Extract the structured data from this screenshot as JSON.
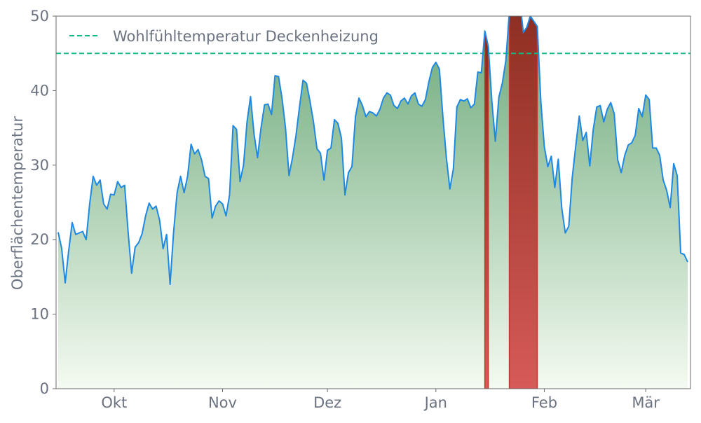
{
  "chart_data": {
    "type": "area",
    "title": "",
    "xlabel": "",
    "ylabel": "Oberflächentemperatur",
    "ylim": [
      0,
      50
    ],
    "yticks": [
      0,
      10,
      20,
      30,
      40,
      50
    ],
    "xticks": [
      {
        "date": "10-01",
        "label": "Okt"
      },
      {
        "date": "11-01",
        "label": "Nov"
      },
      {
        "date": "12-01",
        "label": "Dez"
      },
      {
        "date": "01-01",
        "label": "Jan"
      },
      {
        "date": "02-01",
        "label": "Feb"
      },
      {
        "date": "03-01",
        "label": "Mär"
      }
    ],
    "grid": false,
    "legend_position": "top-left",
    "reference_line": {
      "value": 45,
      "label": "Wohlfühltemperatur Deckenheizung",
      "color": "#10b981",
      "style": "dashed"
    },
    "highlight_ranges": [
      [
        "01-15",
        "01-16"
      ],
      [
        "01-22",
        "01-30"
      ]
    ],
    "colors": {
      "line": "#1e88e5",
      "fill_top": "#5b9f6b",
      "fill_bottom": "#f4faf1",
      "highlight_top": "#862a1c",
      "highlight_bottom": "#d65a58",
      "highlight_edge": "#c0392b"
    },
    "x": [
      "09-15",
      "09-16",
      "09-17",
      "09-18",
      "09-19",
      "09-20",
      "09-21",
      "09-22",
      "09-23",
      "09-24",
      "09-25",
      "09-26",
      "09-27",
      "09-28",
      "09-29",
      "09-30",
      "10-01",
      "10-02",
      "10-03",
      "10-04",
      "10-05",
      "10-06",
      "10-07",
      "10-08",
      "10-09",
      "10-10",
      "10-11",
      "10-12",
      "10-13",
      "10-14",
      "10-15",
      "10-16",
      "10-17",
      "10-18",
      "10-19",
      "10-20",
      "10-21",
      "10-22",
      "10-23",
      "10-24",
      "10-25",
      "10-26",
      "10-27",
      "10-28",
      "10-29",
      "10-30",
      "10-31",
      "11-01",
      "11-02",
      "11-03",
      "11-04",
      "11-05",
      "11-06",
      "11-07",
      "11-08",
      "11-09",
      "11-10",
      "11-11",
      "11-12",
      "11-13",
      "11-14",
      "11-15",
      "11-16",
      "11-17",
      "11-18",
      "11-19",
      "11-20",
      "11-21",
      "11-22",
      "11-23",
      "11-24",
      "11-25",
      "11-26",
      "11-27",
      "11-28",
      "11-29",
      "11-30",
      "12-01",
      "12-02",
      "12-03",
      "12-04",
      "12-05",
      "12-06",
      "12-07",
      "12-08",
      "12-09",
      "12-10",
      "12-11",
      "12-12",
      "12-13",
      "12-14",
      "12-15",
      "12-16",
      "12-17",
      "12-18",
      "12-19",
      "12-20",
      "12-21",
      "12-22",
      "12-23",
      "12-24",
      "12-25",
      "12-26",
      "12-27",
      "12-28",
      "12-29",
      "12-30",
      "12-31",
      "01-01",
      "01-02",
      "01-03",
      "01-04",
      "01-05",
      "01-06",
      "01-07",
      "01-08",
      "01-09",
      "01-10",
      "01-11",
      "01-12",
      "01-13",
      "01-14",
      "01-15",
      "01-16",
      "01-17",
      "01-18",
      "01-19",
      "01-20",
      "01-21",
      "01-22",
      "01-23",
      "01-24",
      "01-25",
      "01-26",
      "01-27",
      "01-28",
      "01-29",
      "01-30",
      "01-31",
      "02-01",
      "02-02",
      "02-03",
      "02-04",
      "02-05",
      "02-06",
      "02-07",
      "02-08",
      "02-09",
      "02-10",
      "02-11",
      "02-12",
      "02-13",
      "02-14",
      "02-15",
      "02-16",
      "02-17",
      "02-18",
      "02-19",
      "02-20",
      "02-21",
      "02-22",
      "02-23",
      "02-24",
      "02-25",
      "02-26",
      "02-27",
      "02-28",
      "02-29",
      "03-01",
      "03-02",
      "03-03",
      "03-04",
      "03-05",
      "03-06",
      "03-07",
      "03-08",
      "03-09",
      "03-10",
      "03-11",
      "03-12",
      "03-13"
    ],
    "values": [
      21.0,
      18.8,
      14.2,
      18.5,
      22.3,
      20.7,
      20.9,
      21.1,
      20.0,
      24.8,
      28.5,
      27.3,
      28.0,
      24.8,
      24.1,
      26.1,
      26.0,
      27.8,
      27.0,
      27.3,
      21.0,
      15.5,
      19.0,
      19.6,
      20.8,
      23.2,
      24.9,
      24.1,
      24.5,
      22.6,
      18.8,
      20.7,
      14.0,
      21.0,
      26.3,
      28.5,
      26.3,
      28.5,
      32.8,
      31.5,
      32.1,
      30.7,
      28.5,
      28.2,
      22.9,
      24.5,
      25.2,
      24.8,
      23.2,
      26.0,
      35.3,
      34.8,
      27.8,
      30.0,
      35.8,
      39.2,
      34.2,
      31.0,
      35.0,
      38.1,
      38.2,
      36.8,
      42.0,
      41.9,
      39.0,
      35.0,
      28.6,
      31.0,
      34.0,
      37.8,
      41.4,
      41.0,
      38.6,
      35.8,
      32.2,
      31.6,
      28.0,
      32.0,
      32.3,
      36.1,
      35.6,
      33.6,
      26.0,
      29.0,
      29.8,
      36.5,
      39.0,
      38.0,
      36.5,
      37.2,
      37.0,
      36.6,
      37.5,
      39.0,
      39.7,
      39.4,
      38.0,
      37.6,
      38.6,
      39.0,
      38.2,
      39.3,
      39.7,
      38.2,
      37.9,
      38.8,
      41.2,
      43.1,
      43.8,
      42.9,
      36.5,
      31.0,
      26.8,
      29.5,
      37.8,
      38.8,
      38.6,
      38.9,
      37.7,
      38.2,
      42.5,
      42.4,
      48.0,
      45.9,
      38.6,
      33.2,
      39.1,
      41.0,
      44.0,
      50.5,
      54.0,
      56.0,
      52.0,
      47.8,
      48.5,
      50.0,
      49.3,
      48.6,
      38.6,
      32.5,
      29.8,
      31.2,
      27.0,
      30.8,
      24.2,
      20.9,
      21.8,
      28.4,
      32.6,
      36.6,
      33.3,
      34.4,
      29.9,
      34.8,
      37.8,
      38.0,
      35.8,
      37.5,
      38.4,
      36.9,
      30.7,
      29.0,
      31.3,
      32.7,
      33.0,
      34.0,
      37.6,
      36.5,
      39.4,
      38.8,
      32.3,
      32.3,
      31.3,
      28.0,
      26.6,
      24.3,
      30.2,
      28.6,
      18.2,
      18.0,
      17.0
    ]
  }
}
